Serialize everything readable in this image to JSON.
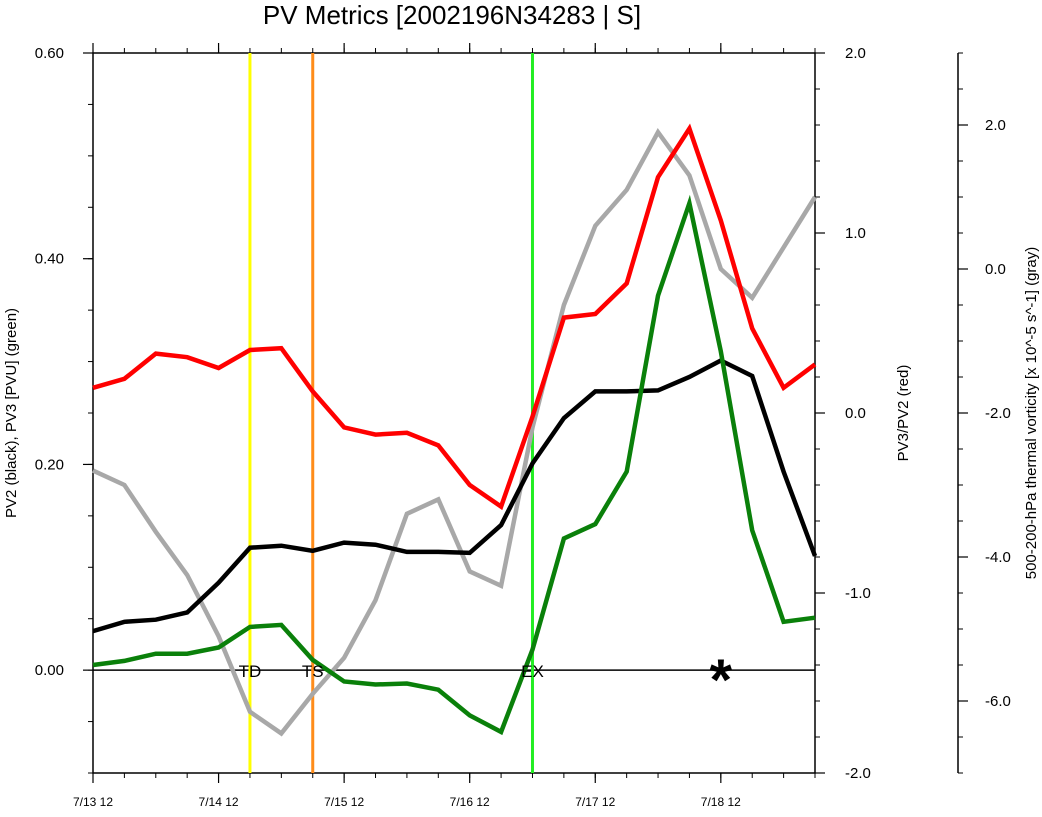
{
  "chart_data": {
    "type": "line",
    "title": "PV Metrics [2002196N34283 | S]",
    "x_tick_labels": [
      "7/13 12",
      "7/14 12",
      "7/15 12",
      "7/16 12",
      "7/17 12",
      "7/18 12"
    ],
    "x_tick_hours": [
      0,
      24,
      48,
      72,
      96,
      120
    ],
    "x_range_hours": [
      0,
      138
    ],
    "left_axis": {
      "label": "PV2 (black), PV3 [PVU] (green)",
      "range": [
        -0.1,
        0.6
      ],
      "tick_labels": [
        "0.60",
        "0.40",
        "0.20",
        "0.00"
      ],
      "tick_values": [
        0.6,
        0.4,
        0.2,
        0.0
      ],
      "minor_step": 0.05
    },
    "right_axis": {
      "label": "PV3/PV2 (red)",
      "range": [
        -2.0,
        2.0
      ],
      "tick_labels": [
        "2.0",
        "1.0",
        "0.0",
        "-1.0",
        "-2.0"
      ],
      "tick_values": [
        2.0,
        1.0,
        0.0,
        -1.0,
        -2.0
      ],
      "minor_step": 0.2
    },
    "far_right_axis": {
      "label": "500-200-hPa thermal vorticity [x 10^-5 s^-1] (gray)",
      "range": [
        -7.0,
        3.0
      ],
      "tick_labels": [
        "2.0",
        "0.0",
        "-2.0",
        "-4.0",
        "-6.0"
      ],
      "tick_values": [
        2.0,
        0.0,
        -2.0,
        -4.0,
        -6.0
      ],
      "minor_step": 0.5
    },
    "zero_line": 0.0,
    "series": [
      {
        "name": "PV2",
        "axis": "left",
        "color": "#000000",
        "x": [
          0,
          6,
          12,
          18,
          24,
          30,
          36,
          42,
          48,
          54,
          60,
          66,
          72,
          78,
          84,
          90,
          96,
          102,
          108,
          114,
          120,
          126,
          132,
          138
        ],
        "values": [
          0.038,
          0.047,
          0.049,
          0.056,
          0.085,
          0.119,
          0.121,
          0.116,
          0.124,
          0.122,
          0.115,
          0.115,
          0.114,
          0.141,
          0.201,
          0.245,
          0.271,
          0.271,
          0.272,
          0.285,
          0.301,
          0.286,
          0.193,
          0.111
        ]
      },
      {
        "name": "PV3",
        "axis": "left",
        "color": "#0a800a",
        "x": [
          0,
          6,
          12,
          18,
          24,
          30,
          36,
          42,
          48,
          54,
          60,
          66,
          72,
          78,
          84,
          90,
          96,
          102,
          108,
          114,
          120,
          126,
          132,
          138
        ],
        "values": [
          0.005,
          0.009,
          0.016,
          0.016,
          0.022,
          0.042,
          0.044,
          0.01,
          -0.011,
          -0.014,
          -0.013,
          -0.019,
          -0.044,
          -0.06,
          0.02,
          0.128,
          0.142,
          0.193,
          0.364,
          0.454,
          0.31,
          0.136,
          0.047,
          0.051
        ]
      },
      {
        "name": "PV3/PV2",
        "axis": "right",
        "color": "#ff0000",
        "x": [
          0,
          6,
          12,
          18,
          24,
          30,
          36,
          42,
          48,
          54,
          60,
          66,
          72,
          78,
          84,
          90,
          96,
          102,
          108,
          114,
          120,
          126,
          132,
          138
        ],
        "values": [
          0.14,
          0.19,
          0.33,
          0.31,
          0.25,
          0.35,
          0.36,
          0.12,
          -0.08,
          -0.12,
          -0.11,
          -0.18,
          -0.4,
          -0.52,
          -0.02,
          0.53,
          0.55,
          0.72,
          1.31,
          1.58,
          1.07,
          0.47,
          0.14,
          0.27
        ]
      },
      {
        "name": "thermal vorticity",
        "axis": "far_right",
        "color": "#a8a8a8",
        "x": [
          0,
          6,
          12,
          18,
          24,
          30,
          36,
          42,
          48,
          54,
          60,
          66,
          72,
          78,
          84,
          90,
          96,
          102,
          108,
          114,
          120,
          126,
          132,
          138
        ],
        "values": [
          -2.8,
          -3.0,
          -3.65,
          -4.25,
          -5.1,
          -6.15,
          -6.45,
          -5.9,
          -5.4,
          -4.6,
          -3.4,
          -3.2,
          -4.2,
          -4.4,
          -2.2,
          -0.5,
          0.6,
          1.1,
          1.9,
          1.3,
          0.0,
          -0.4,
          0.3,
          1.0
        ]
      }
    ],
    "vertical_lines": [
      {
        "label": "TD",
        "x": 30,
        "color": "#ffff00"
      },
      {
        "label": "TS",
        "x": 42,
        "color": "#ff8c1a"
      },
      {
        "label": "EX",
        "x": 84,
        "color": "#22ee22"
      }
    ],
    "star_marker": {
      "symbol": "*",
      "x": 120,
      "value": 0.0
    },
    "grid": false,
    "legend": "none"
  }
}
